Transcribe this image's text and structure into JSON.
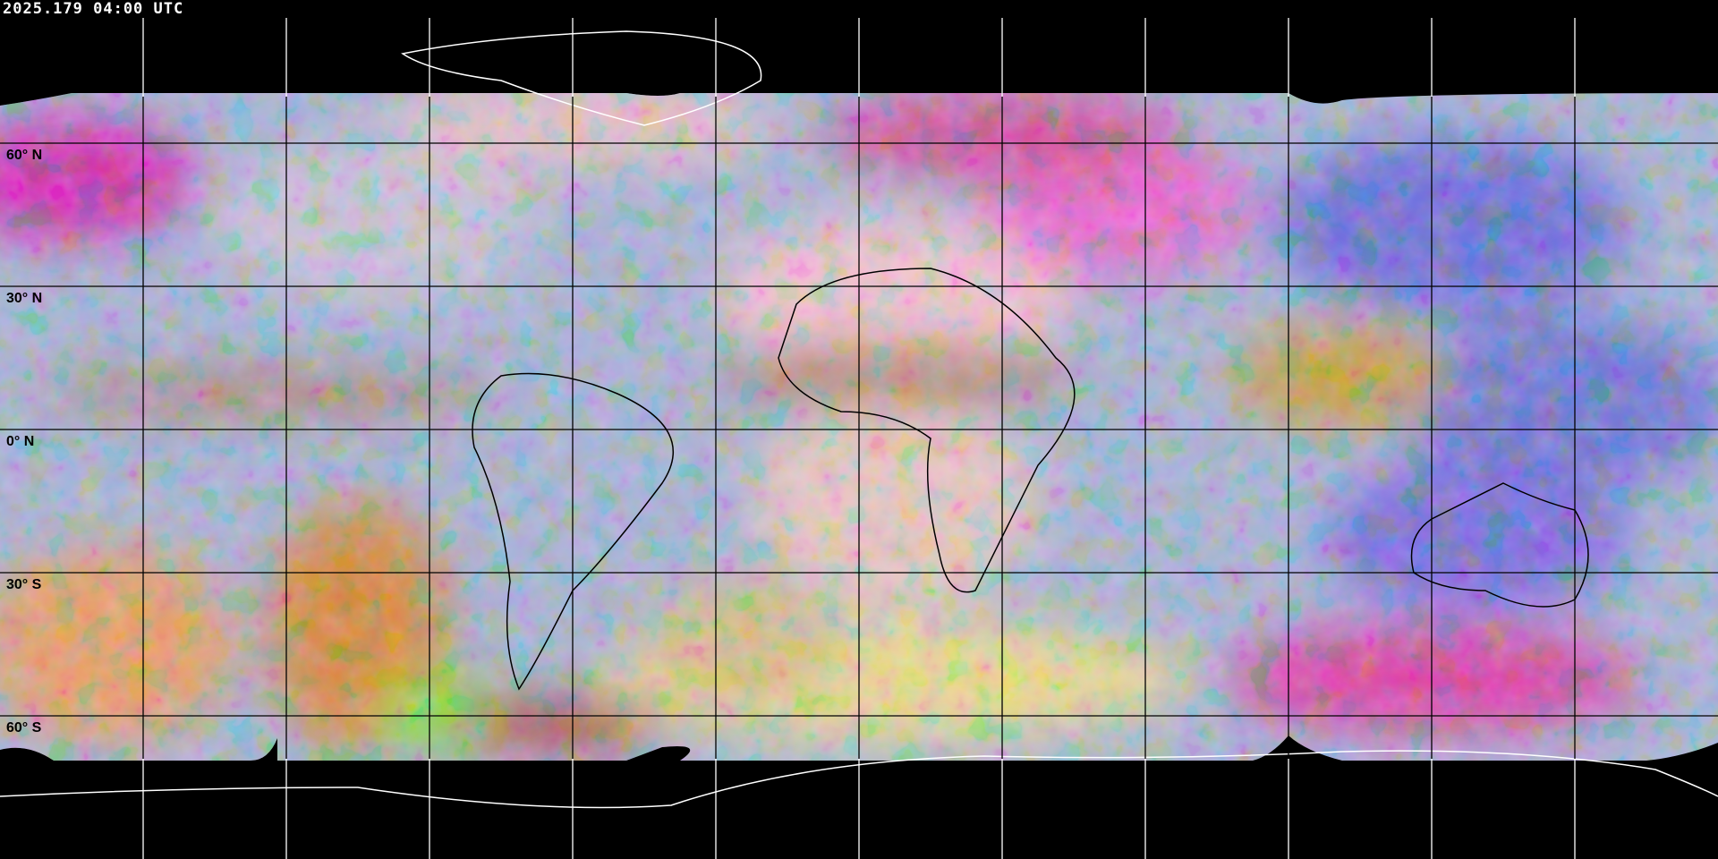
{
  "header": {
    "timestamp": "2025.179 04:00 UTC"
  },
  "map": {
    "projection": "equirectangular",
    "grid_spacing_degrees": 30,
    "lat_labels": [
      "60° N",
      "30° N",
      "0° N",
      "30° S",
      "60° S"
    ],
    "colors": {
      "background": "#000000",
      "coastline_over_space": "#ffffff",
      "coastline_over_imagery": "#000000",
      "grid_over_space": "#ffffff",
      "grid_over_imagery": "#000000"
    }
  }
}
